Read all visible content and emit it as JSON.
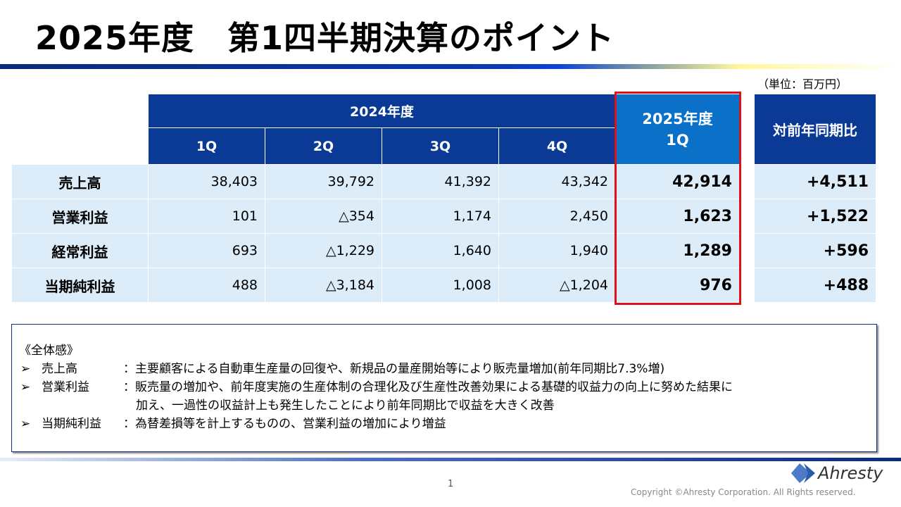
{
  "title": "2025年度　第1四半期決算のポイント",
  "unit": "（単位：百万円）",
  "table": {
    "group_header": "2024年度",
    "quarters": [
      "1Q",
      "2Q",
      "3Q",
      "4Q"
    ],
    "current_header_line1": "2025年度",
    "current_header_line2": "1Q",
    "yoy_header": "対前年同期比",
    "rows": [
      {
        "label": "売上高",
        "values": [
          "38,403",
          "39,792",
          "41,392",
          "43,342"
        ],
        "current": "42,914",
        "yoy": "+4,511"
      },
      {
        "label": "営業利益",
        "values": [
          "101",
          "△354",
          "1,174",
          "2,450"
        ],
        "current": "1,623",
        "yoy": "+1,522"
      },
      {
        "label": "経常利益",
        "values": [
          "693",
          "△1,229",
          "1,640",
          "1,940"
        ],
        "current": "1,289",
        "yoy": "+596"
      },
      {
        "label": "当期純利益",
        "values": [
          "488",
          "△3,184",
          "1,008",
          "△1,204"
        ],
        "current": "976",
        "yoy": "+488"
      }
    ]
  },
  "summary": {
    "heading": "《全体感》",
    "items": [
      {
        "key": "売上高",
        "text": "：主要顧客による自動車生産量の回復や、新規品の量産開始等により販売量増加(前年同期比7.3%増)"
      },
      {
        "key": "営業利益",
        "text": "：販売量の増加や、前年度実施の生産体制の合理化及び生産性改善効果による基礎的収益力の向上に努めた結果に",
        "cont": "加え、一過性の収益計上も発生したことにより前年同期比で収益を大きく改善"
      },
      {
        "key": "当期純利益",
        "text": "：為替差損等を計上するものの、営業利益の増加により増益"
      }
    ],
    "bullet": "➢"
  },
  "footer": {
    "page": "1",
    "copyright": "Copyright ©Ahresty Corporation. All Rights reserved.",
    "logo": "Ahresty"
  },
  "colors": {
    "header": "#0a3a96",
    "highlight": "#0a70c8",
    "cell": "#dcecf8",
    "highlight_border": "#e0101a"
  }
}
